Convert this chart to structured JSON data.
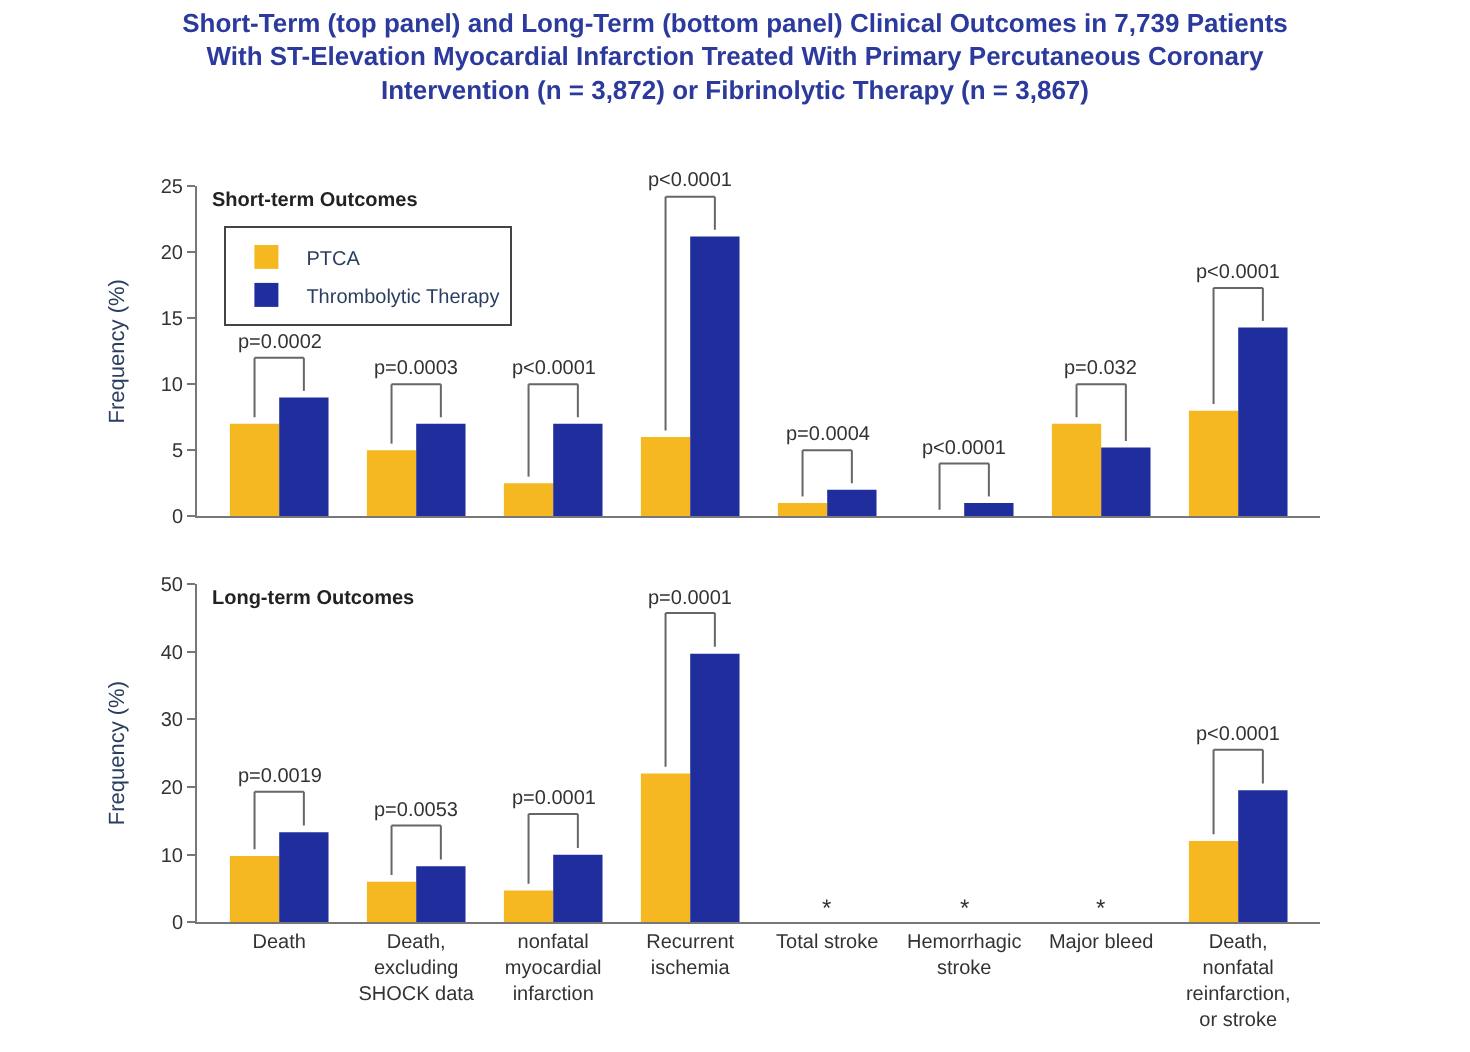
{
  "chart_data": [
    {
      "type": "bar",
      "title": "Short-Term (top panel) and Long-Term (bottom panel) Clinical Outcomes in 7,739 Patients With ST-Elevation Myocardial Infarction Treated With Primary Percutaneous Coronary Intervention (n = 3,872) or Fibrinolytic Therapy (n = 3,867)",
      "subtitle": "Short-term Outcomes",
      "ylabel": "Frequency (%)",
      "categories": [
        "Death",
        "Death, excluding SHOCK data",
        "nonfatal myocardial infarction",
        "Recurrent ischemia",
        "Total stroke",
        "Hemorrhagic stroke",
        "Major bleed",
        "Death, nonfatal reinfarction, or stroke"
      ],
      "series": [
        {
          "name": "PTCA",
          "color": "#f5b820",
          "values": [
            7,
            5,
            2.5,
            6,
            1,
            0,
            7,
            8
          ]
        },
        {
          "name": "Thrombolytic Therapy",
          "color": "#1f2e9c",
          "values": [
            9,
            7,
            7,
            21.2,
            2,
            1,
            5.2,
            14.3
          ]
        }
      ],
      "ylim": [
        0,
        25
      ],
      "yticks": [
        0,
        5,
        10,
        15,
        20,
        25
      ],
      "tick_labels": "y",
      "legend": "top left",
      "annotations": [
        {
          "text": "p=0.0002",
          "x": "Death",
          "y": 9
        },
        {
          "text": "p=0.0003",
          "x": "Death, excluding SHOCK data",
          "y": 7
        },
        {
          "text": "p<0.0001",
          "x": "nonfatal myocardial infarction",
          "y": 7
        },
        {
          "text": "p<0.0001",
          "x": "Recurrent ischemia",
          "y": 21.2
        },
        {
          "text": "p=0.0004",
          "x": "Total stroke",
          "y": 2
        },
        {
          "text": "p<0.0001",
          "x": "Hemorrhagic stroke",
          "y": 1
        },
        {
          "text": "p=0.032",
          "x": "Major bleed",
          "y": 7
        },
        {
          "text": "p<0.0001",
          "x": "Death, nonfatal reinfarction, or stroke",
          "y": 14.3
        }
      ]
    },
    {
      "type": "bar",
      "subtitle": "Long-term Outcomes",
      "ylabel": "Frequency (%)",
      "categories": [
        "Death",
        "Death, excluding SHOCK data",
        "nonfatal myocardial infarction",
        "Recurrent ischemia",
        "Total stroke",
        "Hemorrhagic stroke",
        "Major bleed",
        "Death, nonfatal reinfarction, or stroke"
      ],
      "series": [
        {
          "color": "#f5b820",
          "values": [
            9.8,
            6,
            4.7,
            22,
            null,
            null,
            null,
            12
          ]
        },
        {
          "color": "#1f2e9c",
          "values": [
            13.3,
            8.3,
            10,
            39.7,
            null,
            null,
            null,
            19.5
          ]
        }
      ],
      "ylim": [
        0,
        50
      ],
      "yticks": [
        0,
        10,
        20,
        30,
        40,
        50
      ],
      "legend": false,
      "annotations": [
        {
          "text": "p=0.0019",
          "x": "Death",
          "y": 13.3
        },
        {
          "text": "p=0.0053",
          "x": "Death, excluding SHOCK data",
          "y": 8.3
        },
        {
          "text": "p=0.0001",
          "x": "nonfatal myocardial infarction",
          "y": 10
        },
        {
          "text": "p=0.0001",
          "x": "Recurrent ischemia",
          "y": 39.7
        },
        "*",
        "*",
        "*",
        {
          "text": "p<0.0001",
          "x": "Death, nonfatal reinfarction, or stroke",
          "y": 19.5
        }
      ]
    }
  ]
}
